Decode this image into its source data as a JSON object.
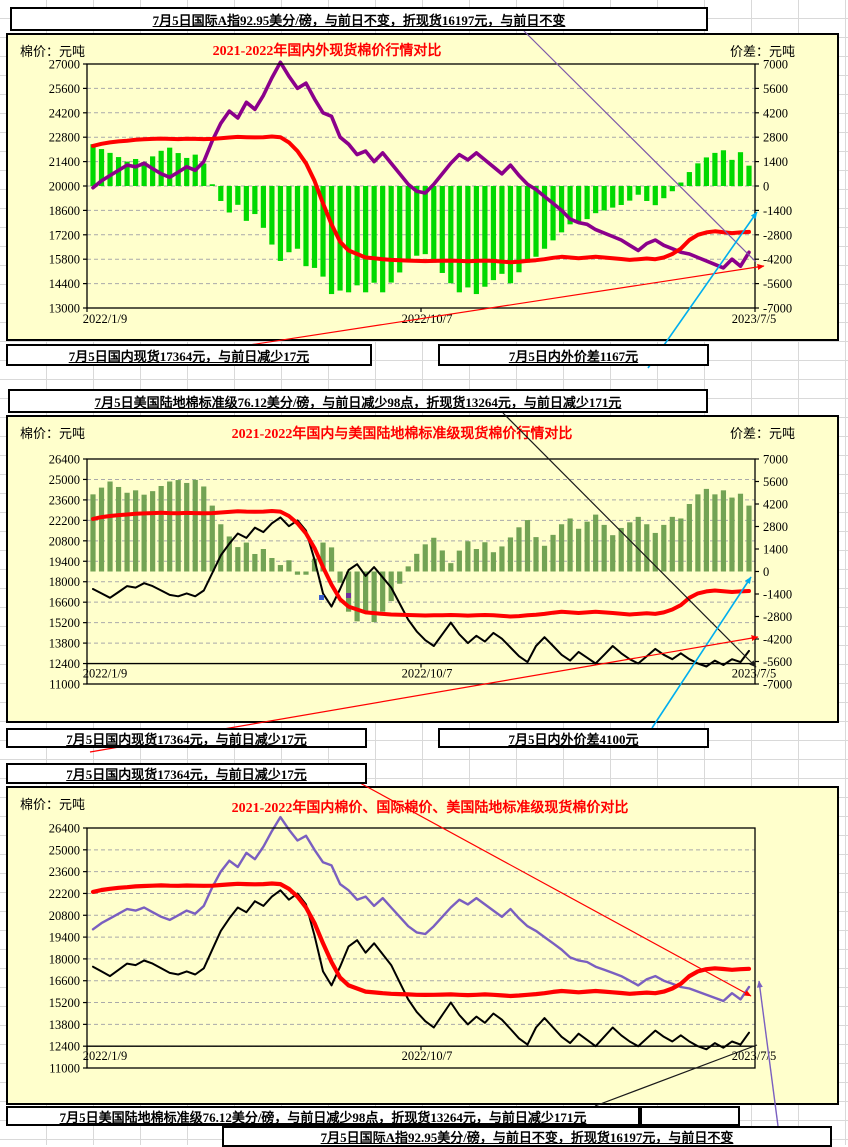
{
  "workbook": {
    "textboxes": {
      "top_intl": "7月5日国际A指92.95美分/磅，与前日不变，折现货16197元，与前日不变",
      "c1_domestic": "7月5日国内现货17364元，与前日减少17元",
      "c1_spread": "7月5日内外价差1167元",
      "us_cotton_1": "7月5日美国陆地棉标准级76.12美分/磅，与前日减少98点，折现货13264元，与前日减少171元",
      "c2_domestic": "7月5日国内现货17364元，与前日减少17元",
      "c2_spread": "7月5日内外价差4100元",
      "c3_domestic": "7月5日国内现货17364元，与前日减少17元",
      "us_cotton_2": "7月5日美国陆地棉标准级76.12美分/磅，与前日减少98点，折现货13264元，与前日减少171元",
      "bottom_intl": "7月5日国际A指92.95美分/磅，与前日不变，折现货16197元，与前日不变"
    }
  },
  "colors": {
    "panel_bg": "#FFFFCC",
    "title_red": "#FF0000",
    "domestic_red": "#FF0000",
    "intl_purple": "#8B008B",
    "intl_purple_light": "#7A5FC0",
    "us_black": "#000000",
    "bars_bright_green": "#00D900",
    "bars_sage_green": "#73A354",
    "annotation_cyan": "#00AEEF",
    "annotation_purple": "#7D57A8",
    "gridline_gray": "#A9A9A9"
  },
  "chart_data": {
    "type": [
      "line+bar",
      "line+bar",
      "line"
    ],
    "x_range": [
      "2022/1/9",
      "2023/7/5"
    ],
    "series": {
      "domestic_spot": {
        "label": "国内现货",
        "color": "#FF0000",
        "values": [
          22300,
          22420,
          22500,
          22560,
          22600,
          22650,
          22680,
          22700,
          22720,
          22700,
          22690,
          22710,
          22700,
          22690,
          22700,
          22740,
          22780,
          22820,
          22800,
          22790,
          22800,
          22840,
          22800,
          22500,
          22000,
          21300,
          20300,
          19000,
          17800,
          16800,
          16300,
          16100,
          15900,
          15850,
          15800,
          15760,
          15740,
          15720,
          15700,
          15690,
          15700,
          15710,
          15720,
          15700,
          15680,
          15700,
          15720,
          15700,
          15660,
          15620,
          15650,
          15700,
          15740,
          15800,
          15880,
          15940,
          15900,
          15860,
          15900,
          15940,
          15900,
          15860,
          15810,
          15760,
          15800,
          15840,
          15800,
          15900,
          16100,
          16400,
          16900,
          17200,
          17340,
          17400,
          17350,
          17300,
          17340,
          17364
        ]
      },
      "intl_a_index_spot": {
        "label": "国际A指折现货",
        "color": "#8B008B",
        "values": [
          19900,
          20300,
          20600,
          20900,
          21200,
          21100,
          21300,
          21000,
          20700,
          20500,
          20800,
          21100,
          20900,
          21400,
          22600,
          23600,
          24300,
          23900,
          24800,
          24400,
          25200,
          26200,
          27100,
          26300,
          25600,
          25900,
          25000,
          24200,
          24000,
          22800,
          22400,
          21800,
          22000,
          21400,
          21900,
          21300,
          20700,
          20100,
          19700,
          19600,
          20100,
          20700,
          21300,
          21800,
          21500,
          21900,
          21500,
          21100,
          20700,
          21200,
          20600,
          20100,
          19800,
          19400,
          19000,
          18600,
          18100,
          17900,
          17800,
          17500,
          17300,
          17100,
          16900,
          16600,
          16300,
          16700,
          16900,
          16600,
          16400,
          16200,
          16100,
          15900,
          15700,
          15500,
          15300,
          15800,
          15400,
          16197
        ]
      },
      "us_cotton_spot": {
        "label": "美国陆地棉标准级折现货",
        "color": "#000000",
        "values": [
          17500,
          17200,
          16900,
          17300,
          17700,
          17600,
          17900,
          17700,
          17400,
          17100,
          17000,
          17200,
          17000,
          17400,
          18600,
          19800,
          20600,
          21300,
          21000,
          21700,
          21400,
          22000,
          22400,
          21800,
          22200,
          21500,
          19500,
          17200,
          16300,
          17500,
          18800,
          19200,
          18400,
          19000,
          18300,
          17600,
          16500,
          15400,
          14600,
          14000,
          13600,
          14400,
          15200,
          14400,
          13800,
          14300,
          13900,
          14500,
          14100,
          13500,
          12900,
          12500,
          13600,
          14200,
          13600,
          13000,
          12600,
          13200,
          12800,
          12400,
          13000,
          13600,
          13100,
          12700,
          12400,
          12900,
          13400,
          13000,
          12700,
          13100,
          12700,
          12400,
          12200,
          12600,
          12300,
          12700,
          12500,
          13264
        ]
      }
    },
    "charts": [
      {
        "title": "2021-2022年国内外现货棉价行情对比",
        "left_axis": {
          "label": "棉价：元吨",
          "max": 27000,
          "min": 13000,
          "ticks": [
            27000,
            25600,
            24200,
            22800,
            21400,
            20000,
            18600,
            17200,
            15800,
            14400,
            13000
          ]
        },
        "right_axis": {
          "label": "价差：元吨",
          "max": 7000,
          "min": -7000,
          "ticks": [
            7000,
            5600,
            4200,
            2800,
            1400,
            0,
            -1400,
            -2800,
            -4200,
            -5600,
            -7000
          ]
        },
        "x_ticks": [
          "2022/1/9",
          "2022/10/7",
          "2023/7/5"
        ],
        "lines": [
          {
            "series": "intl_a_index_spot",
            "color": "#8B008B"
          },
          {
            "series": "domestic_spot",
            "color": "#FF0000"
          }
        ],
        "bars": {
          "diff_of": [
            "domestic_spot",
            "intl_a_index_spot"
          ],
          "axis": "right",
          "color": "#00D900",
          "latest_value": 1167
        }
      },
      {
        "title": "2021-2022年国内与美国陆地棉标准级现货棉价行情对比",
        "left_axis": {
          "label": "棉价：元吨",
          "max": 26400,
          "min": 11000,
          "ticks": [
            26400,
            25000,
            23600,
            22200,
            20800,
            19400,
            18000,
            16600,
            15200,
            13800,
            12400,
            11000
          ]
        },
        "right_axis": {
          "label": "价差：元吨",
          "max": 7000,
          "min": -7000,
          "ticks": [
            7000,
            5600,
            4200,
            2800,
            1400,
            0,
            -1400,
            -2800,
            -4200,
            -5600,
            -7000
          ]
        },
        "x_ticks": [
          "2022/1/9",
          "2022/10/7",
          "2023/7/5"
        ],
        "lines": [
          {
            "series": "us_cotton_spot",
            "color": "#000000"
          },
          {
            "series": "domestic_spot",
            "color": "#FF0000"
          }
        ],
        "bars": {
          "diff_of": [
            "domestic_spot",
            "us_cotton_spot"
          ],
          "axis": "right",
          "color": "#73A354",
          "latest_value": 4100
        }
      },
      {
        "title": "2021-2022年国内棉价、国际棉价、美国陆地标准级现货棉价对比",
        "left_axis": {
          "label": "棉价：元吨",
          "max": 26400,
          "min": 11000,
          "ticks": [
            26400,
            25000,
            23600,
            22200,
            20800,
            19400,
            18000,
            16600,
            15200,
            13800,
            12400,
            11000
          ]
        },
        "x_ticks": [
          "2022/1/9",
          "2022/10/7",
          "2023/7/5"
        ],
        "lines": [
          {
            "series": "us_cotton_spot",
            "color": "#000000"
          },
          {
            "series": "intl_a_index_spot",
            "color": "#7A5FC0"
          },
          {
            "series": "domestic_spot",
            "color": "#FF0000"
          }
        ]
      }
    ]
  }
}
